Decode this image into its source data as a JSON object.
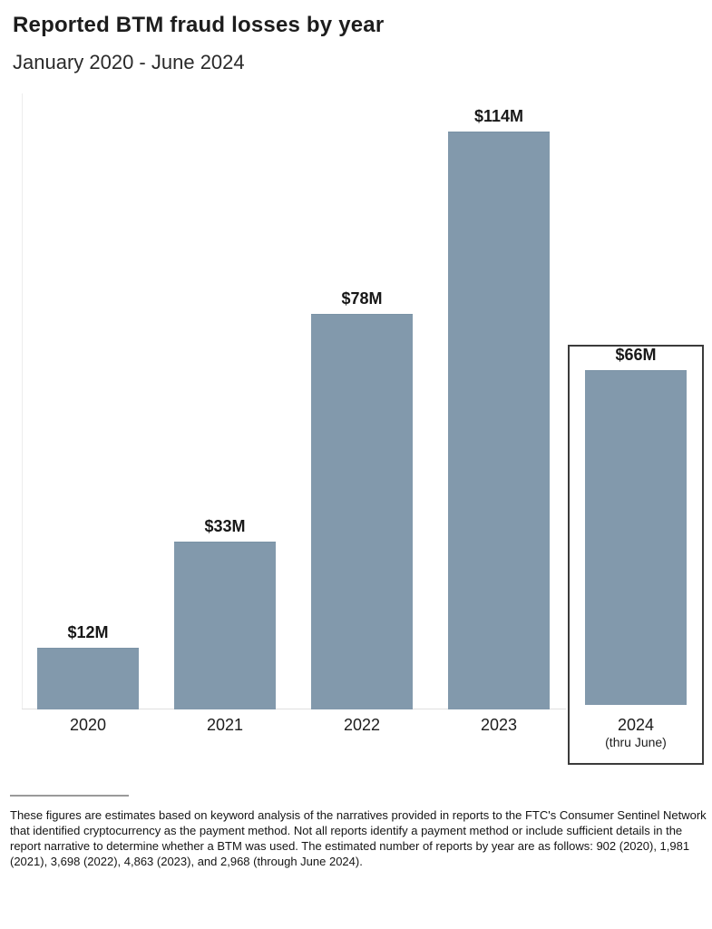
{
  "header": {
    "title": "Reported BTM fraud losses by year",
    "subtitle": "January 2020 - June 2024"
  },
  "chart_data": {
    "type": "bar",
    "title": "Reported BTM fraud losses by year",
    "subtitle": "January 2020 - June 2024",
    "categories": [
      "2020",
      "2021",
      "2022",
      "2023",
      "2024"
    ],
    "values": [
      12,
      33,
      78,
      114,
      66
    ],
    "value_labels": [
      "$12M",
      "$33M",
      "$78M",
      "$114M",
      "$66M"
    ],
    "category_sublabels": [
      "",
      "",
      "",
      "",
      "(thru June)"
    ],
    "highlighted_index": 4,
    "unit": "$M",
    "xlabel": "",
    "ylabel": "",
    "ylim": [
      0,
      120
    ],
    "grid": false,
    "legend": false,
    "bar_color": "#8299ac",
    "bar_border_color": "#7b93a6",
    "highlight_box_border_color": "#3b3b3b"
  },
  "footnote": {
    "text": "These figures are estimates based on keyword analysis of the narratives provided in reports to the FTC's Consumer Sentinel Network that identified cryptocurrency as the payment method. Not all reports identify a payment method or include sufficient details in the report narrative to determine whether a BTM was used. The estimated number of reports by year are as follows: 902 (2020), 1,981 (2021), 3,698 (2022), 4,863 (2023), and 2,968 (through June 2024)."
  }
}
